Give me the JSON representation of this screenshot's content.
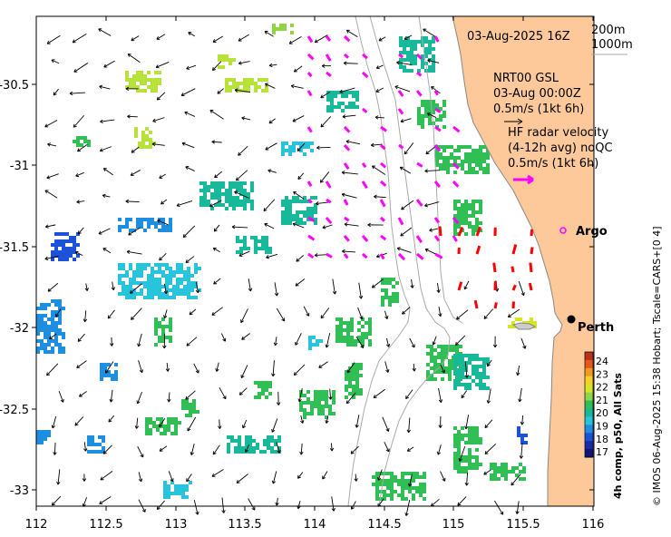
{
  "header": {
    "timestamp": "03-Aug-2025 16Z"
  },
  "contours": {
    "label_200m": "200m",
    "label_1000m": "1000m"
  },
  "model_label": {
    "line1": "NRT00 GSL",
    "line2": "03-Aug 00:00Z",
    "line3": "0.5m/s (1kt 6h)"
  },
  "radar_label": {
    "line1": "HF radar velocity",
    "line2": "(4-12h avg) noQC",
    "line3": "0.5m/s (1kt 6h)"
  },
  "markers": {
    "argo": "Argo",
    "perth": "Perth"
  },
  "axes": {
    "x_ticks": [
      "112",
      "112.5",
      "113",
      "113.5",
      "114",
      "114.5",
      "115",
      "115.5",
      "116"
    ],
    "y_ticks": [
      "-30.5",
      "-31",
      "-31.5",
      "-32",
      "-32.5",
      "-33"
    ]
  },
  "colorbar": {
    "title": "4h comp, p50, All Sats",
    "ticks": [
      "24",
      "23",
      "22",
      "21",
      "20",
      "19",
      "18",
      "17"
    ]
  },
  "credit": "© IMOS 06-Aug-2025 15:38 Hobart; Tscale=CARS+[0 4]",
  "colors": {
    "land": "#fdc99a",
    "radar_arrow": "#ff00ff",
    "argo": "#ff00ff",
    "current_red": "#ff0000",
    "contour": "#aaaaaa"
  }
}
